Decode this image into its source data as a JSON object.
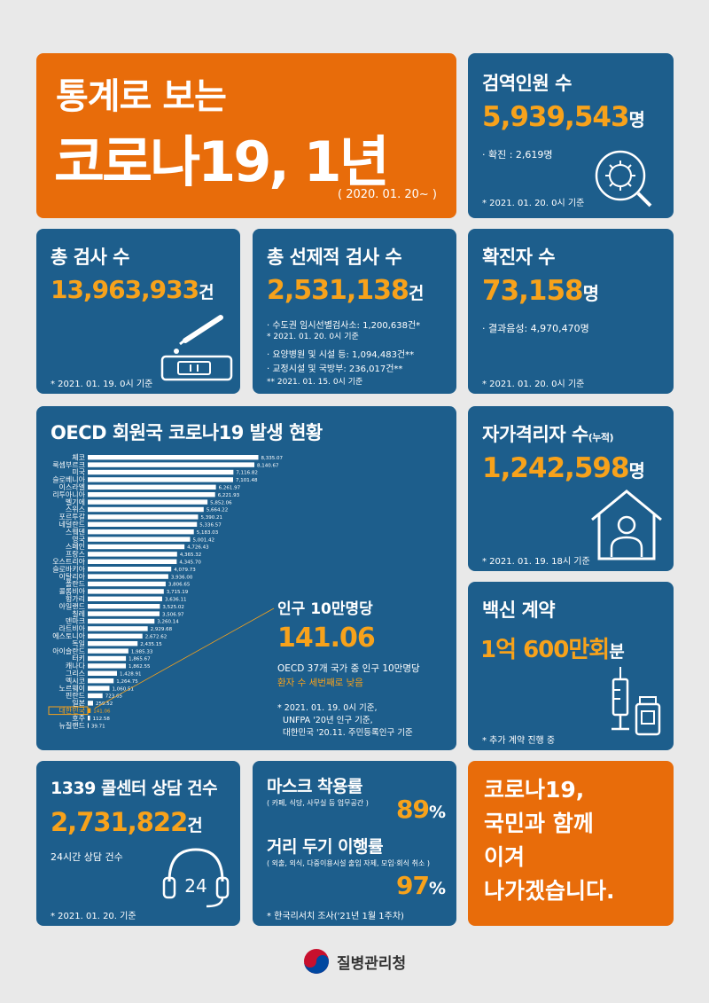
{
  "hero": {
    "line1": "통계로 보는",
    "line2": "코로나19, 1년",
    "period": "( 2020. 01. 20~ )"
  },
  "quarantine": {
    "title": "검역인원 수",
    "value": "5,939,543",
    "unit": "명",
    "sub": "· 확진 : 2,619명",
    "note": "* 2021. 01. 20. 0시 기준"
  },
  "tests": {
    "title": "총 검사 수",
    "value": "13,963,933",
    "unit": "건",
    "note": "* 2021. 01. 19. 0시 기준"
  },
  "preemptive": {
    "title": "총 선제적 검사 수",
    "value": "2,531,138",
    "unit": "건",
    "line1": "· 수도권 임시선별검사소: 1,200,638건*",
    "note1": "* 2021. 01. 20. 0시 기준",
    "line2": "· 요양병원 및 시설 등: 1,094,483건**",
    "line3": "· 교정시설 및 국방부: 236,017건**",
    "note2": "** 2021. 01. 15. 0시 기준"
  },
  "confirmed": {
    "title": "확진자 수",
    "value": "73,158",
    "unit": "명",
    "sub": "· 결과음성: 4,970,470명",
    "note": "* 2021. 01. 20. 0시 기준"
  },
  "oecd": {
    "title": "OECD 회원국 코로나19 발생 현황",
    "callout_title": "인구 10만명당",
    "callout_value": "141.06",
    "callout_text1": "OECD 37개 국가 중 인구 10만명당",
    "callout_text2": "환자 수 세번째로 낮음",
    "source1": "* 2021. 01. 19. 0시 기준,",
    "source2": "UNFPA '20년 인구 기준,",
    "source3": "대한민국 '20.11. 주민등록인구 기준"
  },
  "chart_data": {
    "type": "bar",
    "orientation": "horizontal",
    "title": "OECD 회원국 코로나19 발생 현황",
    "categories": [
      "체코",
      "룩셈부르크",
      "미국",
      "슬로베니아",
      "이스라엘",
      "리투아니아",
      "벨기에",
      "스위스",
      "포르투갈",
      "네덜란드",
      "스웨덴",
      "영국",
      "스페인",
      "프랑스",
      "오스트리아",
      "슬로바키아",
      "이탈리아",
      "폴란드",
      "콜롬비아",
      "헝가리",
      "아일랜드",
      "칠레",
      "덴마크",
      "라트비아",
      "에스토니아",
      "독일",
      "아이슬란드",
      "터키",
      "캐나다",
      "그리스",
      "멕시코",
      "노르웨이",
      "핀란드",
      "일본",
      "대한민국",
      "호주",
      "뉴질랜드"
    ],
    "values": [
      8335.07,
      8140.67,
      7116.82,
      7101.48,
      6261.97,
      6221.93,
      5852.06,
      5664.22,
      5390.21,
      5336.57,
      5183.03,
      5001.42,
      4726.43,
      4365.32,
      4345.7,
      4079.73,
      3936.0,
      3806.65,
      3715.19,
      3636.11,
      3525.02,
      3506.97,
      3260.14,
      2929.68,
      2672.62,
      2435.15,
      1985.33,
      1865.67,
      1862.55,
      1428.91,
      1264.75,
      1060.51,
      723.65,
      259.52,
      141.06,
      112.58,
      39.71
    ],
    "value_labels": [
      "8,335.07",
      "8,140.67",
      "7,116.82",
      "7,101.48",
      "6,261.97",
      "6,221.93",
      "5,852.06",
      "5,664.22",
      "5,390.21",
      "5,336.57",
      "5,183.03",
      "5,001.42",
      "4,726.43",
      "4,365.32",
      "4,345.70",
      "4,079.73",
      "3,936.00",
      "3,806.65",
      "3,715.19",
      "3,636.11",
      "3,525.02",
      "3,506.97",
      "3,260.14",
      "2,929.68",
      "2,672.62",
      "2,435.15",
      "1,985.33",
      "1,865.67",
      "1,862.55",
      "1,428.91",
      "1,264.75",
      "1,060.51",
      "723.65",
      "259.52",
      "141.06",
      "112.58",
      "39.71"
    ],
    "highlight": "대한민국",
    "xlim": [
      0,
      8400
    ]
  },
  "selfquarantine": {
    "title": "자가격리자 수",
    "title_suffix": "(누적)",
    "value": "1,242,598",
    "unit": "명",
    "note": "* 2021. 01. 19. 18시 기준"
  },
  "vaccine": {
    "title": "백신 계약",
    "value": "1억 600만회",
    "unit": "분",
    "note": "* 추가 계약 진행 중"
  },
  "callcenter": {
    "title": "1339 콜센터 상담 건수",
    "value": "2,731,822",
    "unit": "건",
    "sub": "24시간 상담 건수",
    "icon_text": "24",
    "note": "* 2021. 01. 20. 기준"
  },
  "mask": {
    "title1": "마스크 착용률",
    "sub1": "( 카페, 식당, 사무실 등 업무공간 )",
    "value1": "89",
    "pct": "%",
    "title2": "거리 두기 이행률",
    "sub2": "( 외출, 외식, 다중이용시설 출입 자제, 모임·회식 취소 )",
    "value2": "97",
    "note": "* 한국리서치 조사('21년 1월 1주차)"
  },
  "closing": {
    "line1": "코로나19,",
    "line2": "국민과 함께",
    "line3": "이겨",
    "line4": "나가겠습니다."
  },
  "footer": {
    "agency": "질병관리청"
  },
  "colors": {
    "blue": "#1d5e8c",
    "orange": "#e86c0a",
    "accent": "#f7a21b",
    "background": "#e9e9e9"
  }
}
